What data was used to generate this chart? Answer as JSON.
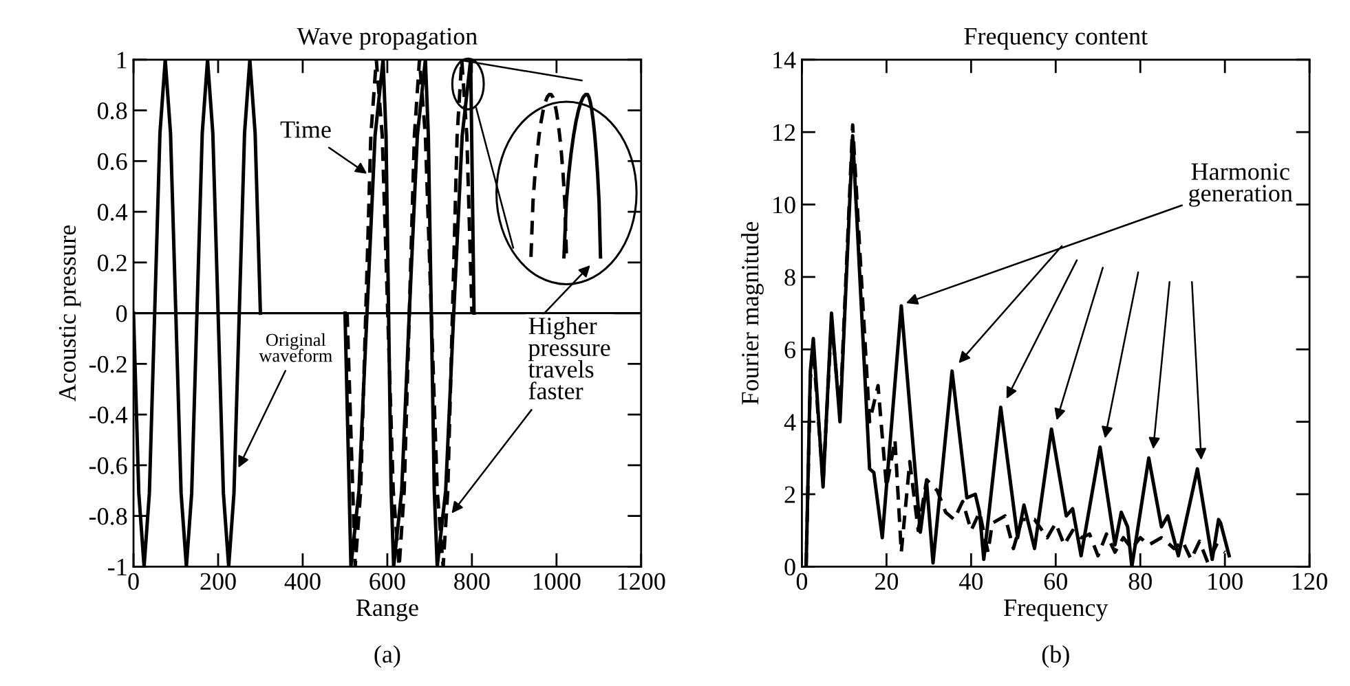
{
  "chart_data": [
    {
      "type": "line",
      "title": "Wave propagation",
      "xlabel": "Range",
      "ylabel": "Acoustic pressure",
      "xlim": [
        0,
        1200
      ],
      "xticks": [
        0,
        200,
        400,
        600,
        800,
        1000,
        1200
      ],
      "ylim": [
        -1,
        1
      ],
      "yticks": [
        -1,
        -0.8,
        -0.6,
        -0.4,
        -0.2,
        0,
        0.2,
        0.4,
        0.6,
        0.8,
        1
      ],
      "grid": false,
      "ref_lines": [
        {
          "axis": "y",
          "value": 0,
          "color": "#000000"
        }
      ],
      "series": [
        {
          "color": "#000000",
          "line_style": "solid",
          "x": [
            0,
            12.5,
            25,
            37.5,
            50,
            62.5,
            75,
            87.5,
            100,
            112.5,
            125,
            137.5,
            150,
            162.5,
            175,
            187.5,
            200,
            212.5,
            225,
            237.5,
            250,
            262.5,
            275,
            287.5,
            300,
            400,
            500,
            514,
            533,
            552,
            571,
            590,
            597,
            603,
            609,
            615,
            634,
            652,
            671,
            690,
            697,
            704,
            711,
            718,
            738,
            757,
            777,
            797,
            801,
            805
          ],
          "values": [
            0,
            -0.71,
            -1,
            -0.71,
            0,
            0.71,
            1,
            0.71,
            0,
            -0.71,
            -1,
            -0.71,
            0,
            0.71,
            1,
            0.71,
            0,
            -0.71,
            -1,
            -0.71,
            0,
            0.71,
            1,
            0.71,
            0,
            null,
            0,
            -1,
            -0.7,
            0,
            0.7,
            1,
            0.7,
            0,
            -0.7,
            -1,
            -0.7,
            0,
            0.7,
            1,
            0.7,
            0,
            -0.7,
            -1,
            -0.7,
            0,
            0.7,
            1,
            0.5,
            0
          ]
        },
        {
          "color": "#000000",
          "line_style": "dashed",
          "x": [
            505,
            524,
            537,
            549,
            561,
            574,
            588,
            601,
            614,
            628,
            640,
            652,
            664,
            676,
            690,
            704,
            718,
            732,
            743,
            754,
            765,
            776,
            788,
            800
          ],
          "values": [
            0,
            -1,
            -0.7,
            0,
            0.7,
            1,
            0.7,
            0,
            -0.7,
            -1,
            -0.7,
            0,
            0.7,
            1,
            0.7,
            0,
            -0.7,
            -1,
            -0.7,
            0,
            0.7,
            1,
            0.7,
            0
          ]
        }
      ],
      "annotations": [
        {
          "text": "Time",
          "x": 552,
          "y": 0.55
        },
        {
          "text": "Original\nwaveform",
          "x": 248,
          "y": -0.61
        },
        {
          "text": "Higher\npressure\ntravels\nfaster",
          "x": 752,
          "y": -0.79
        },
        "(a)"
      ]
    },
    {
      "type": "line",
      "title": "Frequency content",
      "xlabel": "Frequency",
      "ylabel": "Fourier magnitude",
      "xlim": [
        0,
        120
      ],
      "xticks": [
        0,
        20,
        40,
        60,
        80,
        100,
        120
      ],
      "ylim": [
        0,
        14
      ],
      "yticks": [
        0,
        2,
        4,
        6,
        8,
        10,
        12,
        14
      ],
      "grid": false,
      "series": [
        {
          "color": "#000000",
          "line_style": "solid",
          "x": [
            1,
            2,
            2.7,
            5,
            7,
            9,
            12,
            16,
            17,
            19,
            23.5,
            28,
            29.5,
            31,
            35.5,
            39,
            41,
            42,
            43,
            47,
            51,
            52.5,
            55,
            59,
            62.5,
            64,
            66,
            70.5,
            74,
            75.5,
            77,
            78,
            82,
            85,
            86.5,
            89,
            93.5,
            97,
            98.5,
            99,
            101
          ],
          "values": [
            0,
            5.4,
            6.3,
            2.2,
            7.0,
            4.0,
            11.9,
            2.7,
            2.6,
            0.8,
            7.2,
            0.95,
            2.3,
            0.1,
            5.4,
            1.9,
            2.0,
            1.5,
            0.2,
            4.4,
            0.8,
            1.7,
            0.5,
            3.8,
            1.4,
            1.6,
            0.3,
            3.3,
            0.6,
            1.5,
            1.1,
            0,
            3.0,
            1.1,
            1.4,
            0.3,
            2.7,
            0.2,
            1.3,
            1.2,
            0.3
          ]
        },
        {
          "color": "#000000",
          "line_style": "dashed",
          "x": [
            1,
            2,
            2.7,
            5,
            7,
            9,
            12,
            16,
            18,
            20,
            22,
            23.5,
            25.5,
            27.5,
            29.5,
            32,
            34,
            36,
            38,
            40,
            42,
            44,
            45,
            48,
            50,
            52,
            55,
            58,
            60,
            62,
            64,
            66,
            68,
            70,
            72,
            74,
            76,
            78,
            80,
            82,
            85,
            88,
            90,
            92,
            94,
            96,
            98,
            100
          ],
          "values": [
            0,
            5.2,
            6.0,
            2.3,
            6.8,
            4.2,
            12.2,
            4.0,
            5.0,
            2.2,
            3.5,
            0.4,
            2.9,
            1.0,
            2.4,
            2.1,
            1.5,
            1.3,
            1.8,
            1.0,
            1.5,
            0.4,
            1.2,
            1.4,
            0.5,
            1.3,
            1.3,
            0.8,
            1.2,
            0.6,
            1.0,
            0.8,
            0.9,
            0.3,
            0.9,
            0.4,
            0.8,
            0.5,
            0.8,
            0.6,
            0.8,
            0.5,
            0.7,
            0.2,
            0.7,
            0.1,
            0.6,
            0.4
          ]
        }
      ],
      "annotations": [
        {
          "text": "Harmonic\ngeneration",
          "x": 24.6,
          "y": 7.28
        },
        "(b)"
      ]
    }
  ]
}
